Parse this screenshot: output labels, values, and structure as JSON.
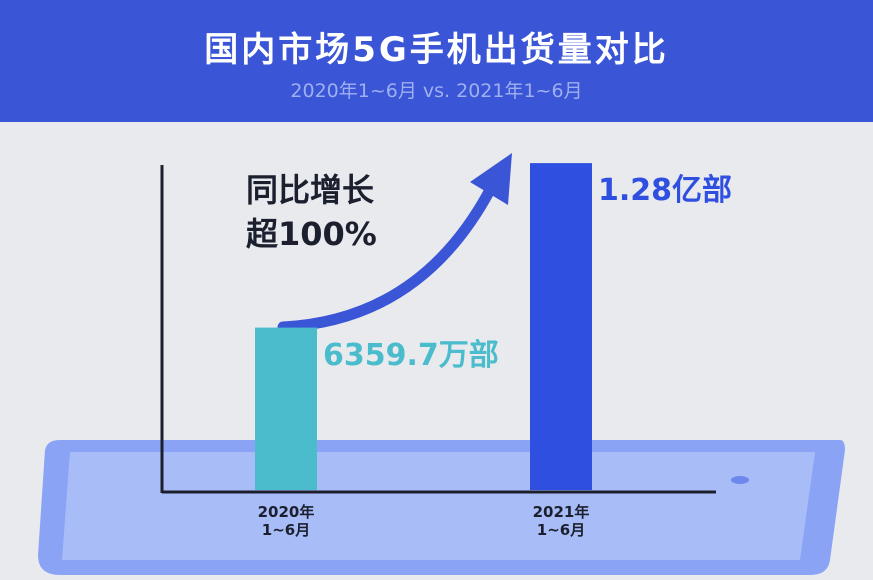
{
  "chart_data": {
    "type": "bar",
    "title": "国内市场5G手机出货量对比",
    "subtitle": "2020年1~6月 vs. 2021年1~6月",
    "annotation": "同比增长\n超100%",
    "categories": [
      "2020年\n1~6月",
      "2021年\n1~6月"
    ],
    "values": [
      6359.7,
      12800
    ],
    "value_labels": [
      "6359.7万部",
      "1.28亿部"
    ],
    "colors": [
      "#4bbccc",
      "#2f4fe0"
    ],
    "ylim": [
      0,
      13000
    ]
  }
}
